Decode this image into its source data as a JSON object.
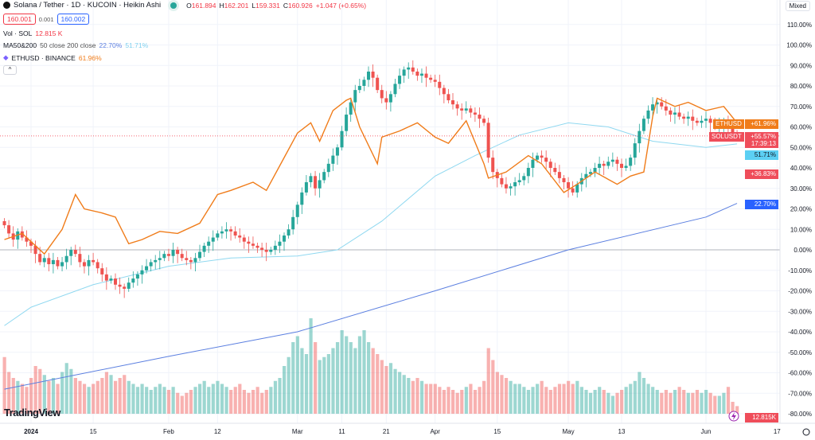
{
  "header": {
    "symbol_title": "Solana / Tether · 1D · KUCOIN · Heikin Ashi",
    "ohlc": {
      "o_label": "O",
      "o": "161.894",
      "h_label": "H",
      "h": "162.201",
      "l_label": "L",
      "l": "159.331",
      "c_label": "C",
      "c": "160.926",
      "change": "+1.047 (+0.65%)"
    },
    "bid": "160.001",
    "spread": "0.001",
    "ask": "160.002",
    "vol_label": "Vol · SOL",
    "vol_value": "12.815 K",
    "ma_label": "MA50&200",
    "ma_params": "50 close 200 close",
    "ma200_value": "22.70%",
    "ma50_value": "51.71%",
    "compare_label": "ETHUSD · BINANCE",
    "compare_value": "61.96%",
    "collapse": "^"
  },
  "toolbar": {
    "scale_mode": "Mixed"
  },
  "branding": {
    "logo": "TradingView"
  },
  "colors": {
    "up": "#26a69a",
    "down": "#ef5350",
    "eth": "#f07c1a",
    "ma50": "#8fd8f0",
    "ma200": "#5b7fe0"
  },
  "badges": {
    "eth_name": "ETHUSD",
    "eth_value": "+61.96%",
    "sol_name": "SOLUSDT",
    "sol_value": "+55.57%",
    "sol_countdown": "17:39:13",
    "ma50": "51.71%",
    "other_red": "+36.83%",
    "ma200": "22.70%",
    "volume": "12.815K"
  },
  "chart_data": {
    "type": "candlestick",
    "y_axis": {
      "scale": "percent",
      "ticks": [
        "110.00%",
        "100.00%",
        "90.00%",
        "80.00%",
        "70.00%",
        "60.00%",
        "50.00%",
        "40.00%",
        "30.00%",
        "20.00%",
        "10.00%",
        "0.00%",
        "-10.00%",
        "-20.00%",
        "-30.00%",
        "-40.00%",
        "-50.00%",
        "-60.00%",
        "-70.00%",
        "-80.00%"
      ],
      "range": [
        -80,
        110
      ]
    },
    "x_axis": {
      "ticks": [
        "2024",
        "15",
        "Feb",
        "12",
        "Mar",
        "11",
        "21",
        "Apr",
        "15",
        "May",
        "13",
        "Jun",
        "17"
      ],
      "tick_dates": [
        "2024-01-01",
        "2024-01-15",
        "2024-02-01",
        "2024-02-12",
        "2024-03-01",
        "2024-03-11",
        "2024-03-21",
        "2024-04-01",
        "2024-04-15",
        "2024-05-01",
        "2024-05-13",
        "2024-06-01",
        "2024-06-17"
      ]
    },
    "grid": true,
    "sol_start_date": "2023-12-26",
    "sol_close_pct": [
      12,
      8,
      5,
      9,
      6,
      4,
      2,
      -2,
      -6,
      -4,
      -7,
      -5,
      -8,
      -6,
      -3,
      0,
      -2,
      -6,
      -8,
      -5,
      -6,
      -9,
      -12,
      -15,
      -14,
      -17,
      -18,
      -19,
      -16,
      -14,
      -12,
      -10,
      -8,
      -6,
      -5,
      -4,
      -2,
      -3,
      0,
      -2,
      -4,
      -5,
      -6,
      -4,
      -1,
      2,
      4,
      6,
      8,
      9,
      10,
      9,
      7,
      6,
      4,
      3,
      2,
      1,
      0,
      -1,
      0,
      2,
      4,
      7,
      10,
      16,
      22,
      28,
      33,
      36,
      30,
      34,
      38,
      42,
      46,
      50,
      58,
      66,
      72,
      78,
      80,
      83,
      87,
      84,
      78,
      74,
      72,
      76,
      81,
      85,
      88,
      89,
      87,
      85,
      86,
      84,
      83,
      82,
      79,
      76,
      73,
      71,
      69,
      68,
      69,
      67,
      66,
      64,
      62,
      45,
      38,
      35,
      32,
      30,
      31,
      33,
      34,
      36,
      40,
      44,
      46,
      45,
      43,
      40,
      38,
      35,
      33,
      30,
      28,
      32,
      35,
      37,
      38,
      40,
      42,
      41,
      43,
      44,
      42,
      40,
      41,
      45,
      52,
      58,
      64,
      68,
      71,
      72,
      70,
      68,
      66,
      67,
      65,
      64,
      65,
      63,
      62,
      63,
      64,
      62,
      60,
      61,
      63,
      60,
      57,
      55.57
    ],
    "volume_k": [
      95,
      70,
      60,
      55,
      50,
      45,
      60,
      80,
      75,
      65,
      55,
      60,
      50,
      70,
      85,
      75,
      60,
      55,
      50,
      45,
      50,
      55,
      60,
      70,
      65,
      55,
      60,
      65,
      55,
      50,
      45,
      50,
      45,
      40,
      45,
      50,
      45,
      40,
      45,
      35,
      30,
      35,
      40,
      45,
      50,
      55,
      45,
      50,
      55,
      50,
      45,
      40,
      45,
      50,
      40,
      35,
      40,
      45,
      35,
      40,
      45,
      55,
      60,
      80,
      95,
      120,
      130,
      110,
      100,
      160,
      120,
      90,
      95,
      100,
      110,
      120,
      140,
      130,
      120,
      110,
      130,
      140,
      120,
      110,
      100,
      90,
      80,
      85,
      75,
      70,
      65,
      60,
      55,
      60,
      55,
      50,
      50,
      50,
      45,
      40,
      45,
      40,
      35,
      40,
      45,
      50,
      40,
      45,
      55,
      110,
      90,
      70,
      65,
      60,
      55,
      50,
      50,
      45,
      40,
      45,
      50,
      55,
      45,
      40,
      45,
      50,
      50,
      55,
      50,
      55,
      45,
      40,
      35,
      40,
      45,
      40,
      35,
      30,
      35,
      40,
      45,
      50,
      55,
      70,
      60,
      50,
      45,
      40,
      35,
      40,
      35,
      40,
      45,
      40,
      35,
      35,
      40,
      35,
      40,
      35,
      30,
      30,
      35,
      45,
      20,
      12.815
    ],
    "series": [
      {
        "name": "ETHUSD",
        "points": [
          [
            "2023-12-26",
            5
          ],
          [
            "2023-12-30",
            8
          ],
          [
            "2024-01-04",
            -2
          ],
          [
            "2024-01-08",
            10
          ],
          [
            "2024-01-11",
            27
          ],
          [
            "2024-01-13",
            20
          ],
          [
            "2024-01-17",
            18
          ],
          [
            "2024-01-20",
            16
          ],
          [
            "2024-01-23",
            3
          ],
          [
            "2024-01-26",
            5
          ],
          [
            "2024-01-30",
            9
          ],
          [
            "2024-02-03",
            8
          ],
          [
            "2024-02-08",
            13
          ],
          [
            "2024-02-12",
            27
          ],
          [
            "2024-02-15",
            29
          ],
          [
            "2024-02-20",
            33
          ],
          [
            "2024-02-23",
            29
          ],
          [
            "2024-02-27",
            45
          ],
          [
            "2024-03-01",
            57
          ],
          [
            "2024-03-04",
            62
          ],
          [
            "2024-03-06",
            53
          ],
          [
            "2024-03-09",
            68
          ],
          [
            "2024-03-12",
            73
          ],
          [
            "2024-03-13",
            74
          ],
          [
            "2024-03-15",
            60
          ],
          [
            "2024-03-19",
            42
          ],
          [
            "2024-03-20",
            55
          ],
          [
            "2024-03-24",
            58
          ],
          [
            "2024-03-28",
            62
          ],
          [
            "2024-04-01",
            55
          ],
          [
            "2024-04-04",
            52
          ],
          [
            "2024-04-08",
            63
          ],
          [
            "2024-04-12",
            42
          ],
          [
            "2024-04-13",
            35
          ],
          [
            "2024-04-17",
            38
          ],
          [
            "2024-04-22",
            46
          ],
          [
            "2024-04-25",
            42
          ],
          [
            "2024-04-30",
            28
          ],
          [
            "2024-05-03",
            32
          ],
          [
            "2024-05-07",
            38
          ],
          [
            "2024-05-12",
            32
          ],
          [
            "2024-05-15",
            36
          ],
          [
            "2024-05-18",
            38
          ],
          [
            "2024-05-20",
            65
          ],
          [
            "2024-05-21",
            74
          ],
          [
            "2024-05-25",
            70
          ],
          [
            "2024-05-28",
            72
          ],
          [
            "2024-06-01",
            68
          ],
          [
            "2024-06-05",
            70
          ],
          [
            "2024-06-08",
            61.96
          ]
        ]
      },
      {
        "name": "MA50",
        "points": [
          [
            "2023-12-26",
            -37
          ],
          [
            "2024-01-01",
            -28
          ],
          [
            "2024-01-15",
            -17
          ],
          [
            "2024-02-01",
            -8
          ],
          [
            "2024-02-15",
            -4
          ],
          [
            "2024-03-01",
            -3
          ],
          [
            "2024-03-10",
            0
          ],
          [
            "2024-03-20",
            14
          ],
          [
            "2024-04-01",
            36
          ],
          [
            "2024-04-10",
            46
          ],
          [
            "2024-04-20",
            56
          ],
          [
            "2024-05-01",
            62
          ],
          [
            "2024-05-10",
            60
          ],
          [
            "2024-05-20",
            53
          ],
          [
            "2024-06-01",
            50
          ],
          [
            "2024-06-08",
            51.71
          ]
        ]
      },
      {
        "name": "MA200",
        "points": [
          [
            "2023-12-26",
            -68
          ],
          [
            "2024-02-01",
            -52
          ],
          [
            "2024-03-01",
            -40
          ],
          [
            "2024-04-01",
            -20
          ],
          [
            "2024-05-01",
            0
          ],
          [
            "2024-06-01",
            16
          ],
          [
            "2024-06-08",
            22.7
          ]
        ]
      }
    ]
  }
}
